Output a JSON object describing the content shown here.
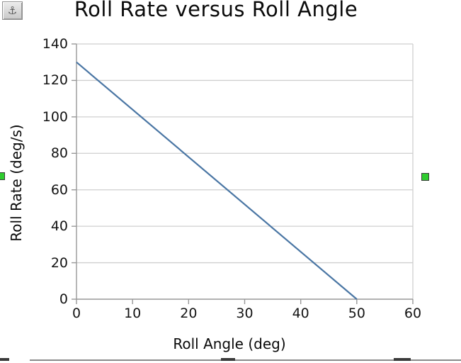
{
  "anchor": {
    "glyph": "⚓"
  },
  "chart_data": {
    "type": "line",
    "title": "Roll Rate versus Roll Angle",
    "xlabel": "Roll Angle (deg)",
    "ylabel": "Roll Rate (deg/s)",
    "xlim": [
      0,
      60
    ],
    "ylim": [
      0,
      140
    ],
    "xticks": [
      0,
      10,
      20,
      30,
      40,
      50,
      60
    ],
    "yticks": [
      0,
      20,
      40,
      60,
      80,
      100,
      120,
      140
    ],
    "grid": "horizontal",
    "legend": "none",
    "series": [
      {
        "name": "Roll Rate",
        "color": "#4a76a4",
        "points": [
          [
            0,
            130
          ],
          [
            50,
            0
          ]
        ]
      }
    ]
  },
  "colors": {
    "gridline": "#cfcfcf",
    "axis": "#989898",
    "data_line": "#4a76a4",
    "handle_fill": "#2fcc2f",
    "handle_border": "#3c3c3c",
    "selection_border": "#8a8a8a",
    "selection_stub": "#3a3a3a",
    "background": "#ffffff"
  }
}
